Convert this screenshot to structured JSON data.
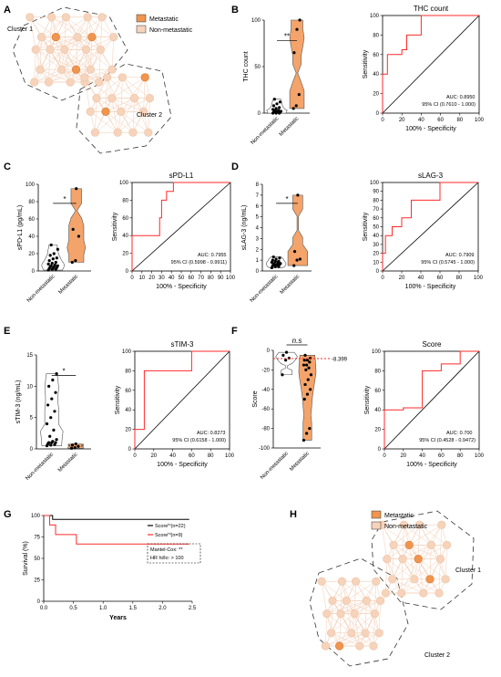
{
  "colors": {
    "metastatic": "#f0954f",
    "nonmetastatic": "#f6d3bb",
    "edge": "#f3cdb5",
    "roc": "#ff2a2a",
    "ref": "#000000",
    "violin": "#f4a46a"
  },
  "panels": {
    "A": {
      "letter": "A",
      "legend": [
        "Metastatic",
        "Non-metastatic"
      ],
      "cluster_labels": [
        "Cluster 1",
        "Cluster 2"
      ]
    },
    "H": {
      "letter": "H",
      "legend": [
        "Metastatic",
        "Non-metastatic"
      ],
      "cluster_labels": [
        "Cluster 1",
        "Cluster 2"
      ]
    },
    "G": {
      "letter": "G",
      "box_lines": [
        "Mantel-Cox: **",
        "HR hi/lo: > 100"
      ]
    }
  },
  "chart_data": [
    {
      "id": "B-violin",
      "panel": "B",
      "type": "scatter",
      "ylabel": "THC count",
      "ylim": [
        0,
        100
      ],
      "yticks": [
        0,
        50,
        100
      ],
      "categories": [
        "Non-metastatic",
        "Metastatic"
      ],
      "significance": "**",
      "series": [
        {
          "name": "Non-metastatic",
          "values": [
            0,
            0,
            1,
            1,
            2,
            2,
            3,
            4,
            5,
            6,
            8,
            10,
            12,
            15,
            2,
            0,
            1,
            3
          ]
        },
        {
          "name": "Metastatic",
          "values": [
            5,
            8,
            20,
            65,
            90,
            100
          ]
        }
      ]
    },
    {
      "id": "B-roc",
      "panel": "B",
      "type": "line",
      "title": "THC count",
      "xlabel": "100% - Specificity",
      "ylabel": "Sensitivity",
      "xlim": [
        0,
        100
      ],
      "ylim": [
        0,
        100
      ],
      "xticks": [
        0,
        20,
        40,
        60,
        80,
        100
      ],
      "yticks": [
        0,
        20,
        40,
        60,
        80,
        100
      ],
      "auc": "AUC: 0.8950",
      "ci": "95% CI (0.7610 - 1.000)",
      "x": [
        0,
        0,
        5,
        5,
        20,
        20,
        25,
        25,
        40,
        40,
        100
      ],
      "y": [
        0,
        40,
        40,
        60,
        60,
        65,
        65,
        80,
        80,
        100,
        100
      ]
    },
    {
      "id": "C-violin",
      "panel": "C",
      "type": "scatter",
      "ylabel": "sPD-L1 (pg/mL)",
      "ylim": [
        0,
        100
      ],
      "yticks": [
        0,
        20,
        40,
        60,
        80,
        100
      ],
      "categories": [
        "Non-metastatic",
        "Metastatic"
      ],
      "significance": "*",
      "series": [
        {
          "name": "Non-metastatic",
          "values": [
            1,
            2,
            2,
            3,
            4,
            5,
            5,
            6,
            7,
            8,
            9,
            10,
            12,
            14,
            15,
            18,
            20,
            25,
            30,
            3,
            6
          ]
        },
        {
          "name": "Metastatic",
          "values": [
            10,
            12,
            40,
            48,
            95
          ]
        }
      ]
    },
    {
      "id": "C-roc",
      "panel": "C",
      "type": "line",
      "title": "sPD-L1",
      "xlabel": "100% - Specificity",
      "ylabel": "Sensitivity",
      "xlim": [
        0,
        100
      ],
      "ylim": [
        0,
        100
      ],
      "xticks": [
        0,
        10,
        20,
        30,
        40,
        50,
        60,
        70,
        80,
        90,
        100
      ],
      "yticks": [
        0,
        20,
        40,
        60,
        80,
        100
      ],
      "auc": "AUC: 0.7955",
      "ci": "95% CI (0.5998 - 0.9911)",
      "x": [
        0,
        0,
        28,
        28,
        30,
        30,
        35,
        35,
        42,
        42,
        100
      ],
      "y": [
        0,
        40,
        40,
        60,
        60,
        80,
        80,
        90,
        90,
        100,
        100
      ]
    },
    {
      "id": "D-violin",
      "panel": "D",
      "type": "scatter",
      "ylabel": "sLAG-3 (ng/mL)",
      "ylim": [
        0,
        8
      ],
      "yticks": [
        0,
        1,
        2,
        3,
        4,
        5,
        6,
        7,
        8
      ],
      "categories": [
        "Non-metastatic",
        "Metastatic"
      ],
      "significance": "*",
      "series": [
        {
          "name": "Non-metastatic",
          "values": [
            0.3,
            0.4,
            0.5,
            0.5,
            0.6,
            0.6,
            0.7,
            0.7,
            0.8,
            0.8,
            0.9,
            1.0,
            1.1,
            1.2,
            1.3,
            0.4,
            0.6,
            0.9
          ]
        },
        {
          "name": "Metastatic",
          "values": [
            0.5,
            1.0,
            1.1,
            1.8,
            7.0
          ]
        }
      ]
    },
    {
      "id": "D-roc",
      "panel": "D",
      "type": "line",
      "title": "sLAG-3",
      "xlabel": "100% - Specificity",
      "ylabel": "Sensitivity",
      "xlim": [
        0,
        100
      ],
      "ylim": [
        0,
        100
      ],
      "xticks": [
        0,
        20,
        40,
        60,
        80,
        100
      ],
      "yticks": [
        0,
        10,
        20,
        30,
        40,
        50,
        60,
        70,
        80,
        90,
        100
      ],
      "auc": "AUC: 0.7909",
      "ci": "95% CI (0.5745 - 1.000)",
      "x": [
        0,
        0,
        3,
        3,
        10,
        10,
        20,
        20,
        30,
        30,
        60,
        60,
        100
      ],
      "y": [
        0,
        20,
        20,
        40,
        40,
        50,
        50,
        60,
        60,
        80,
        80,
        100,
        100
      ]
    },
    {
      "id": "E-violin",
      "panel": "E",
      "type": "scatter",
      "ylabel": "sTIM-3 (ng/mL)",
      "ylim": [
        0,
        15
      ],
      "yticks": [
        0,
        5,
        10,
        15
      ],
      "categories": [
        "Non-metastatic",
        "Metastatic"
      ],
      "significance": "*",
      "series": [
        {
          "name": "Non-metastatic",
          "values": [
            0.5,
            0.6,
            0.8,
            1,
            1,
            1.2,
            1.5,
            2,
            3,
            4,
            5,
            6,
            7,
            8,
            9,
            10,
            11,
            12,
            1,
            0.7
          ]
        },
        {
          "name": "Metastatic",
          "values": [
            0.1,
            0.2,
            0.4,
            0.6,
            0.8
          ]
        }
      ]
    },
    {
      "id": "E-roc",
      "panel": "E",
      "type": "line",
      "title": "sTIM-3",
      "xlabel": "100% - Specificity",
      "ylabel": "Sensitivity",
      "xlim": [
        0,
        100
      ],
      "ylim": [
        0,
        100
      ],
      "xticks": [
        0,
        20,
        40,
        60,
        80,
        100
      ],
      "yticks": [
        0,
        20,
        40,
        60,
        80,
        100
      ],
      "auc": "AUC: 0.8273",
      "ci": "95% CI (0.6158 - 1.000)",
      "x": [
        0,
        0,
        10,
        10,
        60,
        60,
        100
      ],
      "y": [
        0,
        20,
        20,
        80,
        80,
        100,
        100
      ]
    },
    {
      "id": "F-violin",
      "panel": "F",
      "type": "scatter",
      "ylabel": "Score",
      "ylim": [
        -100,
        0
      ],
      "yticks": [
        -100,
        -80,
        -60,
        -40,
        -20,
        0
      ],
      "categories": [
        "Non-metastatic",
        "Metastatic"
      ],
      "significance": "n.s",
      "threshold": -8.399,
      "threshold_label": "-8.399",
      "series": [
        {
          "name": "Non-metastatic",
          "values": [
            -2,
            -5,
            -8,
            -10,
            -25
          ]
        },
        {
          "name": "Metastatic",
          "values": [
            -5,
            -8,
            -10,
            -12,
            -15,
            -18,
            -20,
            -25,
            -30,
            -35,
            -40,
            -45,
            -50,
            -80,
            -85,
            -92,
            -10,
            -15
          ]
        }
      ]
    },
    {
      "id": "F-roc",
      "panel": "F",
      "type": "line",
      "title": "Score",
      "xlabel": "100% - Specificity",
      "ylabel": "Sensitivity",
      "xlim": [
        0,
        100
      ],
      "ylim": [
        0,
        100
      ],
      "xticks": [
        0,
        20,
        40,
        60,
        80,
        100
      ],
      "yticks": [
        0,
        20,
        40,
        60,
        80,
        100
      ],
      "auc": "AUC: 0.700",
      "ci": "95% CI (0.4528 - 0.9472)",
      "x": [
        0,
        0,
        20,
        20,
        40,
        40,
        60,
        60,
        80,
        80,
        100
      ],
      "y": [
        0,
        40,
        40,
        42,
        42,
        80,
        80,
        87,
        87,
        100,
        100
      ]
    },
    {
      "id": "G-survival",
      "panel": "G",
      "type": "line",
      "xlabel": "Years",
      "ylabel": "Survival (%)",
      "xlim": [
        0,
        2.5
      ],
      "ylim": [
        0,
        100
      ],
      "xticks": [
        0,
        0.5,
        1.0,
        1.5,
        2.0,
        2.5
      ],
      "yticks": [
        0,
        25,
        50,
        75,
        100
      ],
      "series": [
        {
          "name": "Score",
          "sup": "lo",
          "n": "(n=22)",
          "color": "#000000",
          "x": [
            0,
            0.15,
            0.15,
            2.45
          ],
          "y": [
            100,
            100,
            95.5,
            95.5
          ]
        },
        {
          "name": "Score",
          "sup": "hi",
          "n": "(n=9)",
          "color": "#ff2a2a",
          "x": [
            0,
            0.1,
            0.1,
            0.2,
            0.2,
            0.55,
            0.55,
            2.45
          ],
          "y": [
            100,
            100,
            88.9,
            88.9,
            77.8,
            77.8,
            66.7,
            66.7
          ]
        }
      ]
    }
  ]
}
